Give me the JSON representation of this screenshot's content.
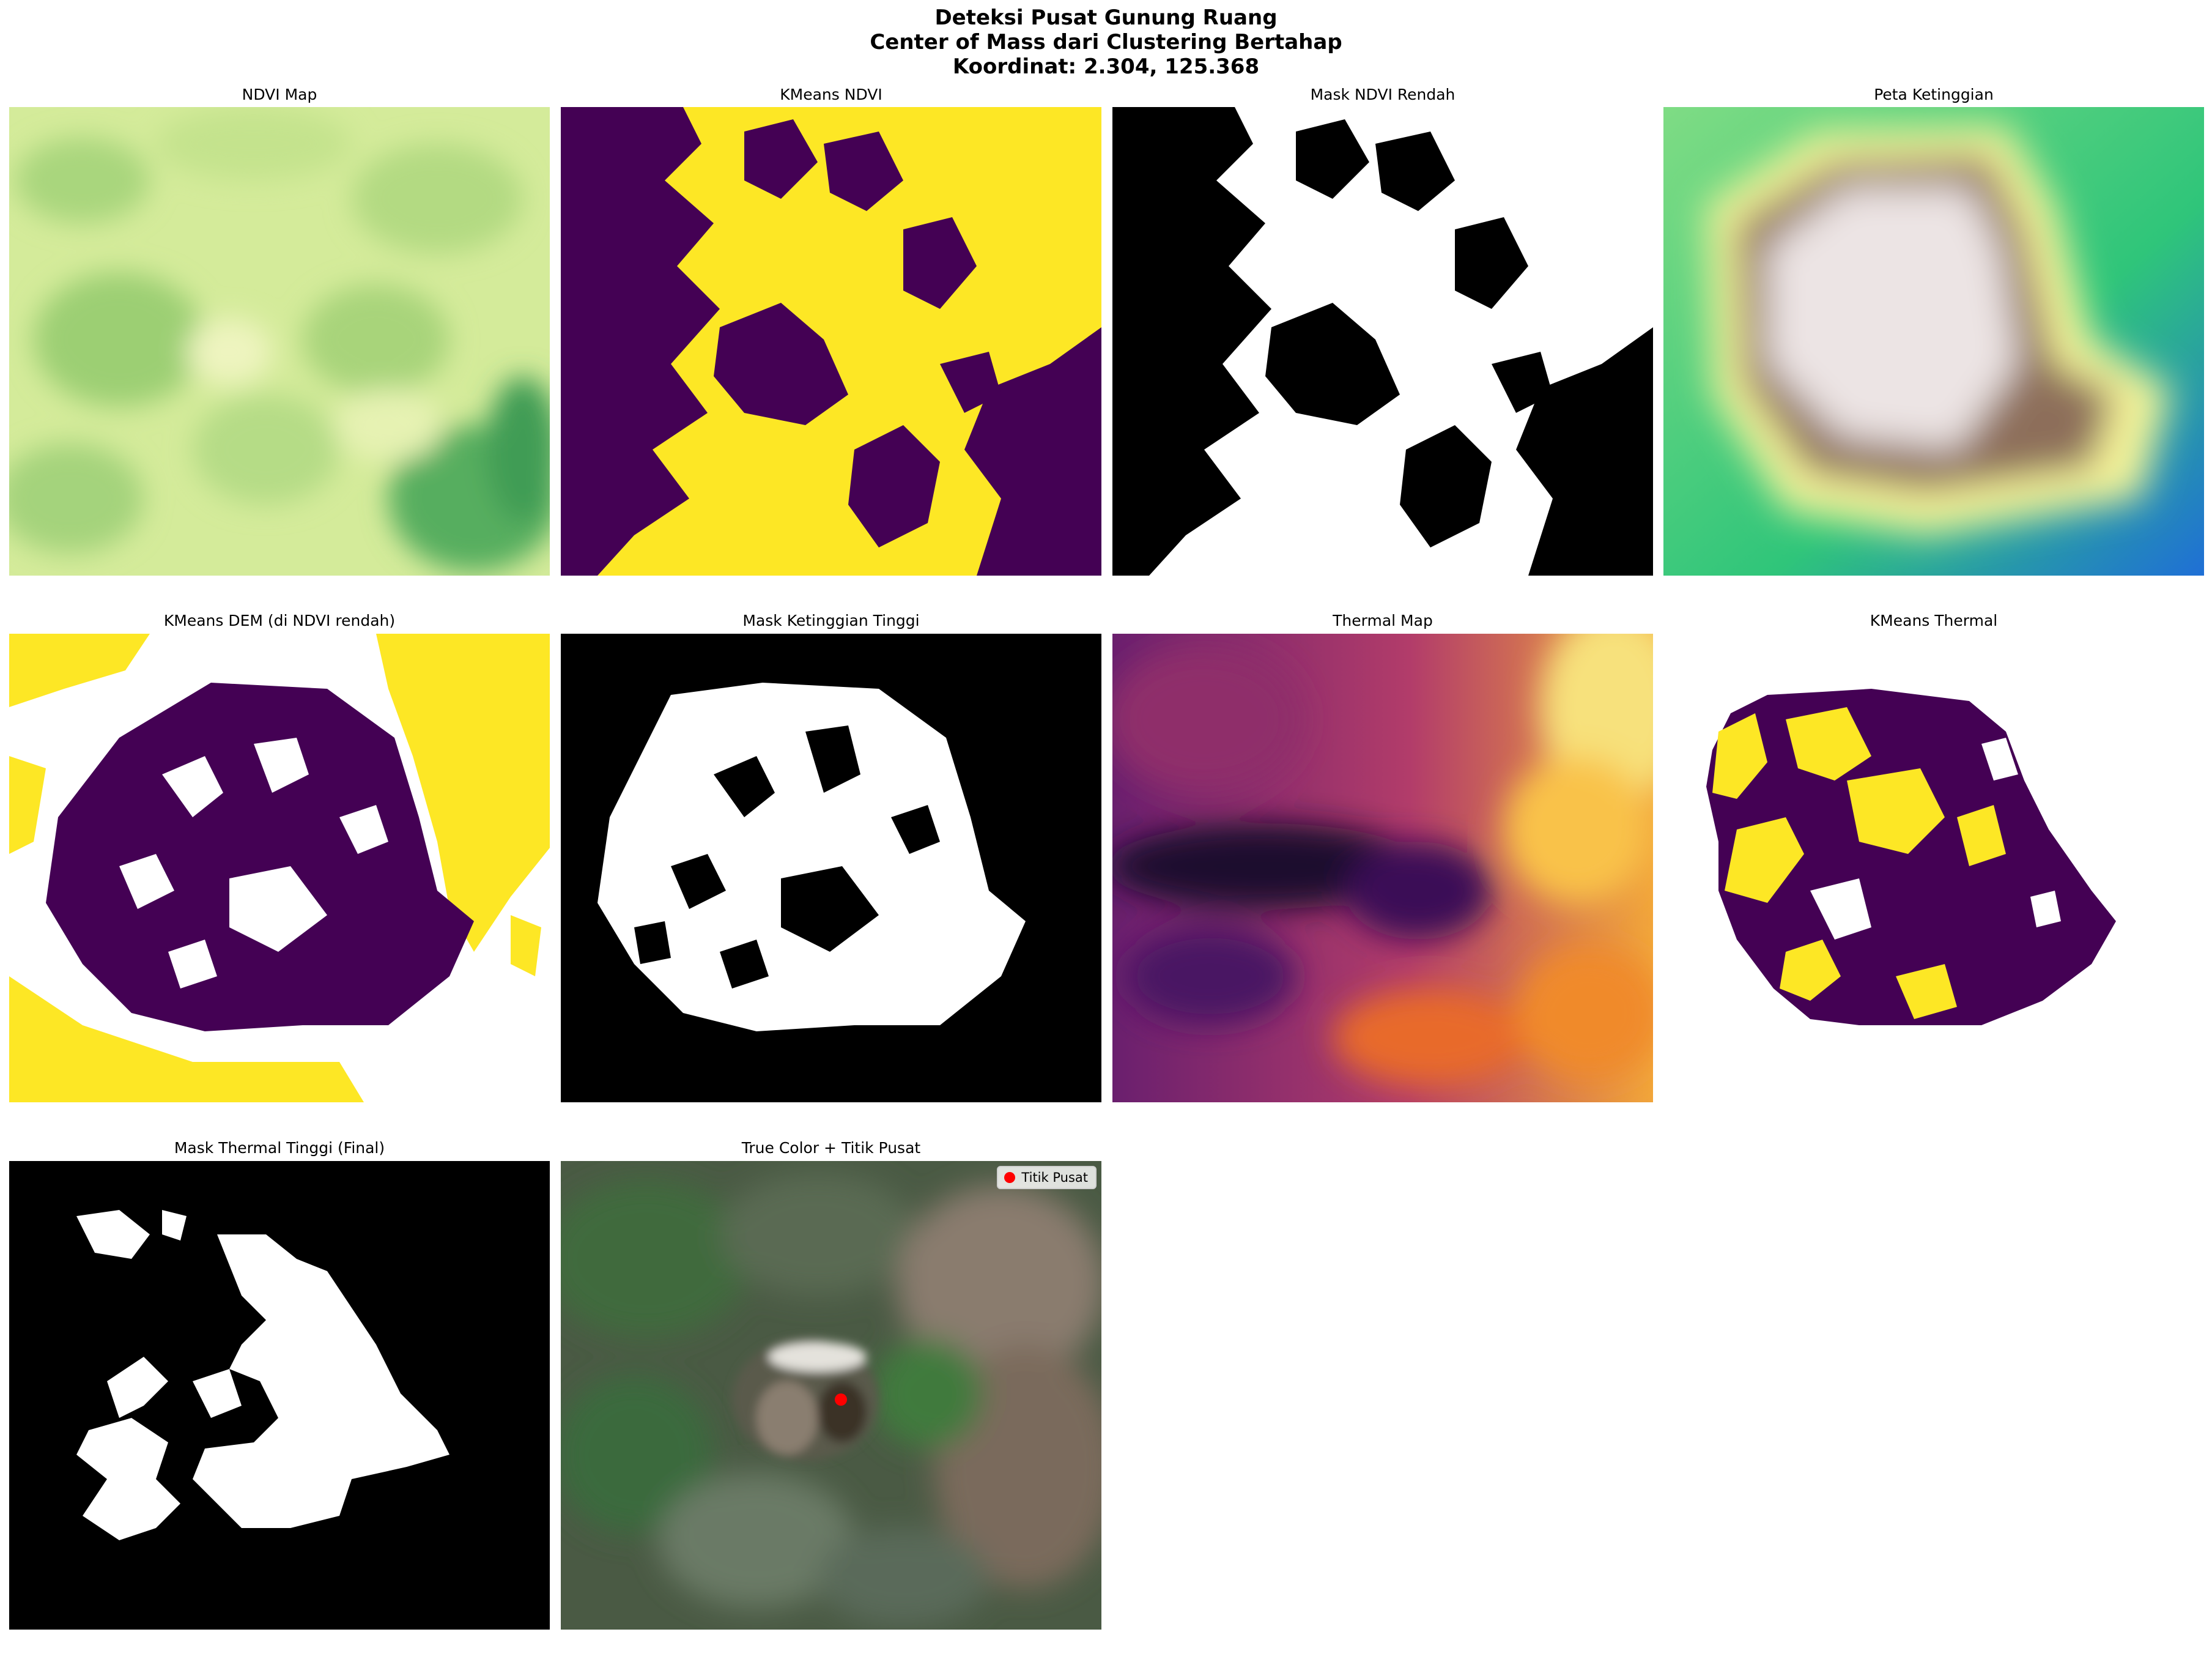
{
  "figure": {
    "title_line1": "Deteksi Pusat Gunung Ruang",
    "title_line2": "Center of Mass dari Clustering Bertahap",
    "title_line3": "Koordinat: 2.304, 125.368"
  },
  "panels": [
    {
      "id": "ndvi",
      "title": "NDVI Map"
    },
    {
      "id": "kmeans-ndvi",
      "title": "KMeans NDVI"
    },
    {
      "id": "mask-ndvi",
      "title": "Mask NDVI Rendah"
    },
    {
      "id": "elevation",
      "title": "Peta Ketinggian"
    },
    {
      "id": "kmeans-dem",
      "title": "KMeans DEM (di NDVI rendah)"
    },
    {
      "id": "mask-elev",
      "title": "Mask Ketinggian Tinggi"
    },
    {
      "id": "thermal",
      "title": "Thermal Map"
    },
    {
      "id": "kmeans-thermal",
      "title": "KMeans Thermal"
    },
    {
      "id": "mask-thermal",
      "title": "Mask Thermal Tinggi (Final)"
    },
    {
      "id": "truecolor",
      "title": "True Color + Titik Pusat"
    }
  ],
  "legend": {
    "label": "Titik Pusat",
    "color": "#ff0000"
  },
  "colors": {
    "viridis_low": "#440154",
    "viridis_high": "#fde725",
    "mask_on": "#ffffff",
    "mask_off": "#000000",
    "center_point": "#ff0000"
  }
}
